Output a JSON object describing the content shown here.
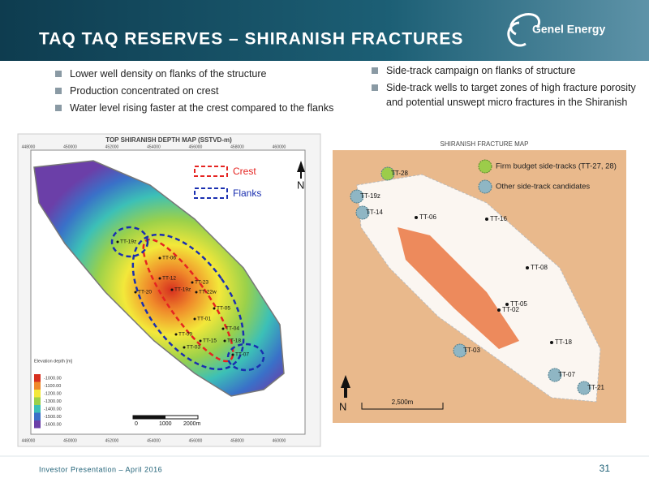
{
  "header": {
    "title": "TAQ TAQ RESERVES – SHIRANISH FRACTURES",
    "logo": "Genel Energy"
  },
  "bullets_left": [
    "Lower well density on flanks of the structure",
    "Production concentrated on crest",
    "Water level rising faster at the crest compared to the flanks"
  ],
  "bullets_right": [
    "Side-track campaign on flanks of structure",
    "Side-track wells to target zones of high fracture porosity and potential unswept micro fractures in the Shiranish"
  ],
  "left_map": {
    "title": "TOP SHIRANISH DEPTH MAP (SSTVD-m)",
    "crest": "Crest",
    "flanks": "Flanks",
    "north": "N",
    "x_labels": [
      "448000",
      "450000",
      "452000",
      "454000",
      "456000",
      "458000",
      "460000"
    ],
    "scale_labels": [
      "0",
      "1000",
      "2000m"
    ],
    "legend_title": "Elevation depth [m]",
    "legend_items": [
      "-1000.00",
      "-1100.00",
      "-1200.00",
      "-1300.00",
      "-1400.00",
      "-1500.00",
      "-1600.00"
    ],
    "wells": [
      "TT-19z",
      "TT-06",
      "TT-12",
      "TT-23",
      "TT-19z",
      "TT-22w",
      "TT-20",
      "TT-05",
      "TT-01",
      "TT-04",
      "TT-09",
      "TT-03",
      "TT-15",
      "TT-18",
      "TT-07"
    ]
  },
  "right_map": {
    "caption": "SHIRANISH FRACTURE MAP",
    "legend": [
      "Firm budget side-tracks (TT-27, 28)",
      "Other side-track candidates"
    ],
    "north": "N",
    "scale": "2,500m",
    "wells": [
      "TT-28",
      "TT-19z",
      "TT-14",
      "TT-06",
      "TT-16",
      "TT-08",
      "TT-02",
      "TT-05",
      "TT-03",
      "TT-18",
      "TT-07",
      "TT-21"
    ]
  },
  "footer": {
    "text": "Investor Presentation – April 2016",
    "page": "31"
  }
}
